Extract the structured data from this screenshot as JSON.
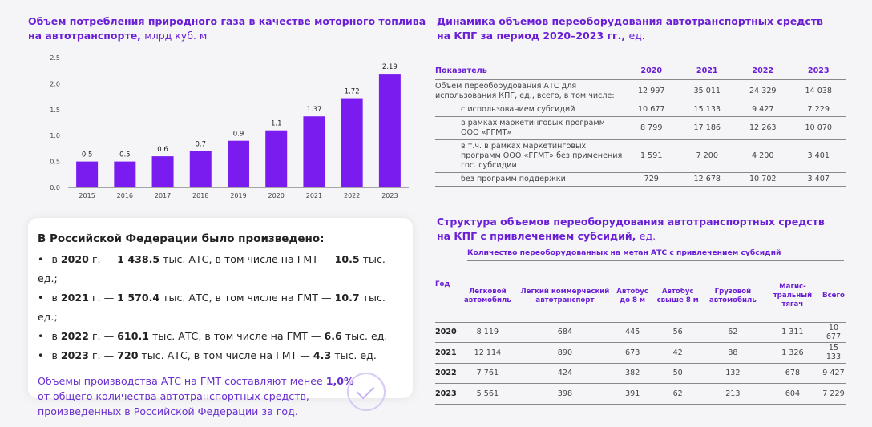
{
  "left": {
    "title": "Объем потребления природного газа в качестве моторного топлива",
    "title2": "на автотранспорте,",
    "unit": "млрд куб. м"
  },
  "chart_data": {
    "type": "bar",
    "categories": [
      "2015",
      "2016",
      "2017",
      "2018",
      "2019",
      "2020",
      "2021",
      "2022",
      "2023"
    ],
    "values": [
      0.5,
      0.5,
      0.6,
      0.7,
      0.9,
      1.1,
      1.37,
      1.72,
      2.19
    ],
    "labels": [
      "0.5",
      "0.5",
      "0.6",
      "0.7",
      "0.9",
      "1.1",
      "1.37",
      "1.72",
      "2.19"
    ],
    "yticks": [
      "0.0",
      "0.5",
      "1.0",
      "1.5",
      "2.0",
      "2.5"
    ],
    "ylim": [
      0,
      2.5
    ],
    "grid": false,
    "color": "#7a1cf0"
  },
  "card": {
    "heading": "В Российской Федерации было произведено:",
    "items": [
      {
        "a": "в ",
        "y": "2020",
        "b": " г. —  ",
        "v": "1 438.5",
        "c": " тыс. АТС, в том числе на ГМТ — ",
        "g": "10.5",
        "d": " тыс. ед.;"
      },
      {
        "a": "в ",
        "y": "2021",
        "b": " г. — ",
        "v": "1 570.4",
        "c": " тыс. АТС, в том числе на ГМТ — ",
        "g": "10.7",
        "d": " тыс. ед.;"
      },
      {
        "a": "в ",
        "y": "2022",
        "b": " г. — ",
        "v": "610.1",
        "c": " тыс. АТС,  в том числе на ГМТ — ",
        "g": "6.6",
        "d": " тыс. ед."
      },
      {
        "a": "в ",
        "y": "2023",
        "b": " г. — ",
        "v": "720",
        "c": " тыс. АТС,  в том числе на ГМТ — ",
        "g": "4.3",
        "d": " тыс. ед."
      }
    ],
    "note": "Объемы производства АТС на ГМТ составляют менее ",
    "note_pct": "1,0%",
    "note2": " от общего количества автотранспортных средств, произведенных в Российской Федерации за  год."
  },
  "table1": {
    "title": "Динамика объемов переоборудования автотранспортных средств",
    "title2": "на КПГ за период 2020–2023 гг.,",
    "unit": "ед.",
    "headers": [
      "Показатель",
      "2020",
      "2021",
      "2022",
      "2023"
    ],
    "rows": [
      [
        "Объем переоборудования АТС для использования КПГ, ед., всего, в том числе:",
        "12 997",
        "35 011",
        "24 329",
        "14 038"
      ],
      [
        "с использованием  субсидий",
        "10 677",
        "15 133",
        "9 427",
        "7 229"
      ],
      [
        "в рамках маркетинговых программ ООО «ГГМТ»",
        "8 799",
        "17 186",
        "12 263",
        "10 070"
      ],
      [
        "в т.ч. в рамках маркетинговых программ ООО «ГГМТ» без применения  гос. субсидии",
        "1 591",
        "7 200",
        "4 200",
        "3 401"
      ],
      [
        "без программ поддержки",
        "729",
        "12 678",
        "10 702",
        "3 407"
      ]
    ]
  },
  "table2": {
    "title": "Структура объемов переоборудования автотранспортных средств",
    "title2": "на КПГ с привлечением субсидий,",
    "unit": "ед.",
    "subtitle": "Количество переоборудованных на метан АТС с привлечением  субсидий",
    "headers": [
      "Год",
      "Легковой автомобиль",
      "Легкий коммерческий автотранспорт",
      "Автобус до 8 м",
      "Автобус свыше 8 м",
      "Грузовой автомобиль",
      "Магис-тральный тягач",
      "Всего"
    ],
    "rows": [
      [
        "2020",
        "8 119",
        "684",
        "445",
        "56",
        "62",
        "1 311",
        "10 677"
      ],
      [
        "2021",
        "12 114",
        "890",
        "673",
        "42",
        "88",
        "1 326",
        "15 133"
      ],
      [
        "2022",
        "7 761",
        "424",
        "382",
        "50",
        "132",
        "678",
        "9 427"
      ],
      [
        "2023",
        "5 561",
        "398",
        "391",
        "62",
        "213",
        "604",
        "7 229"
      ]
    ]
  }
}
